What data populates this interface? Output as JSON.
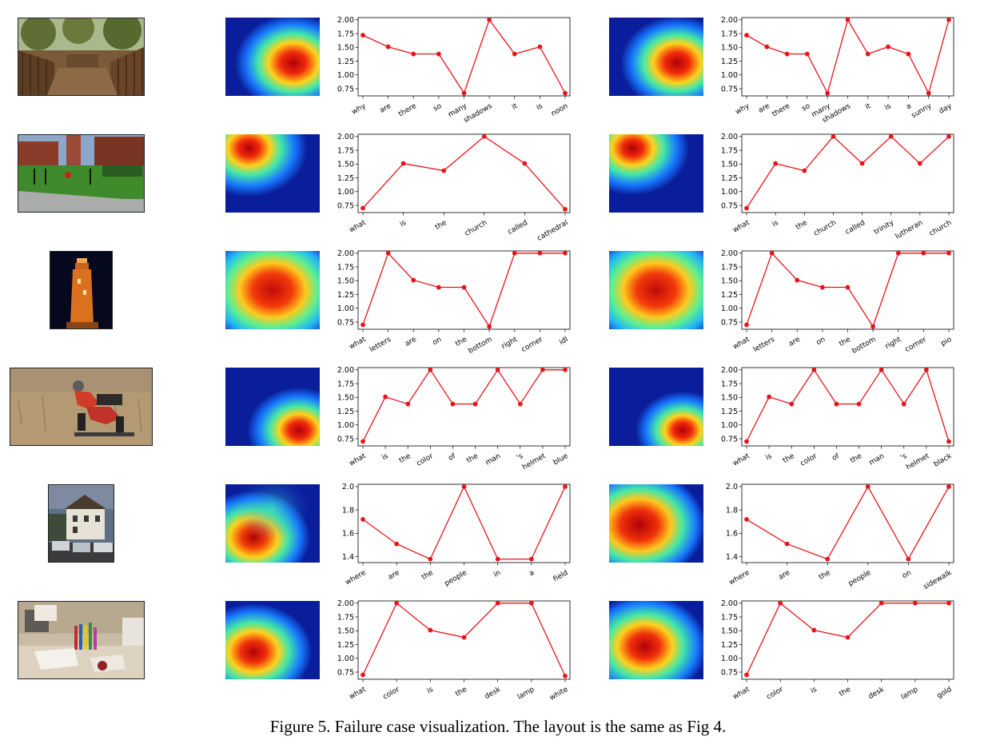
{
  "caption": "Figure 5. Failure case visualization. The layout is the same as Fig 4.",
  "chart_data": [
    {
      "type": "line",
      "title": "",
      "xlabel": "",
      "ylabel": "",
      "ylim": [
        0.62,
        2.04
      ],
      "yticks": [
        "0.75",
        "1.00",
        "1.25",
        "1.50",
        "1.75",
        "2.00"
      ],
      "yticks_v": [
        0.75,
        1.0,
        1.25,
        1.5,
        1.75,
        2.0
      ],
      "categories": [
        "why",
        "are",
        "there",
        "so",
        "many",
        "shadows",
        "it",
        "is",
        "noon"
      ],
      "values": [
        1.72,
        1.51,
        1.38,
        1.38,
        0.67,
        2.0,
        1.38,
        1.51,
        0.67
      ]
    },
    {
      "type": "line",
      "title": "",
      "xlabel": "",
      "ylabel": "",
      "ylim": [
        0.62,
        2.04
      ],
      "yticks": [
        "0.75",
        "1.00",
        "1.25",
        "1.50",
        "1.75",
        "2.00"
      ],
      "yticks_v": [
        0.75,
        1.0,
        1.25,
        1.5,
        1.75,
        2.0
      ],
      "categories": [
        "why",
        "are",
        "there",
        "so",
        "many",
        "shadows",
        "it",
        "is",
        "a",
        "sunny",
        "day"
      ],
      "values": [
        1.72,
        1.51,
        1.38,
        1.38,
        0.67,
        2.0,
        1.38,
        1.51,
        1.38,
        0.67,
        2.0
      ]
    },
    {
      "type": "line",
      "title": "",
      "xlabel": "",
      "ylabel": "",
      "ylim": [
        0.62,
        2.04
      ],
      "yticks": [
        "0.75",
        "1.00",
        "1.25",
        "1.50",
        "1.75",
        "2.00"
      ],
      "yticks_v": [
        0.75,
        1.0,
        1.25,
        1.5,
        1.75,
        2.0
      ],
      "categories": [
        "what",
        "is",
        "the",
        "church",
        "called",
        "cathedral"
      ],
      "values": [
        0.7,
        1.51,
        1.38,
        2.0,
        1.51,
        0.68
      ]
    },
    {
      "type": "line",
      "title": "",
      "xlabel": "",
      "ylabel": "",
      "ylim": [
        0.62,
        2.04
      ],
      "yticks": [
        "0.75",
        "1.00",
        "1.25",
        "1.50",
        "1.75",
        "2.00"
      ],
      "yticks_v": [
        0.75,
        1.0,
        1.25,
        1.5,
        1.75,
        2.0
      ],
      "categories": [
        "what",
        "is",
        "the",
        "church",
        "called",
        "trinity",
        "lutheran",
        "church"
      ],
      "values": [
        0.7,
        1.51,
        1.38,
        2.0,
        1.51,
        2.0,
        1.51,
        2.0
      ]
    },
    {
      "type": "line",
      "title": "",
      "xlabel": "",
      "ylabel": "",
      "ylim": [
        0.62,
        2.04
      ],
      "yticks": [
        "0.75",
        "1.00",
        "1.25",
        "1.50",
        "1.75",
        "2.00"
      ],
      "yticks_v": [
        0.75,
        1.0,
        1.25,
        1.5,
        1.75,
        2.0
      ],
      "categories": [
        "what",
        "letters",
        "are",
        "on",
        "the",
        "bottom",
        "right",
        "corner",
        "idl"
      ],
      "values": [
        0.7,
        2.0,
        1.51,
        1.38,
        1.38,
        0.67,
        2.0,
        2.0,
        2.0
      ]
    },
    {
      "type": "line",
      "title": "",
      "xlabel": "",
      "ylabel": "",
      "ylim": [
        0.62,
        2.04
      ],
      "yticks": [
        "0.75",
        "1.00",
        "1.25",
        "1.50",
        "1.75",
        "2.00"
      ],
      "yticks_v": [
        0.75,
        1.0,
        1.25,
        1.5,
        1.75,
        2.0
      ],
      "categories": [
        "what",
        "letters",
        "are",
        "on",
        "the",
        "bottom",
        "right",
        "corner",
        "pio"
      ],
      "values": [
        0.7,
        2.0,
        1.51,
        1.38,
        1.38,
        0.67,
        2.0,
        2.0,
        2.0
      ]
    },
    {
      "type": "line",
      "title": "",
      "xlabel": "",
      "ylabel": "",
      "ylim": [
        0.62,
        2.04
      ],
      "yticks": [
        "0.75",
        "1.00",
        "1.25",
        "1.50",
        "1.75",
        "2.00"
      ],
      "yticks_v": [
        0.75,
        1.0,
        1.25,
        1.5,
        1.75,
        2.0
      ],
      "categories": [
        "what",
        "is",
        "the",
        "color",
        "of",
        "the",
        "man",
        "'s",
        "helmet",
        "blue"
      ],
      "values": [
        0.7,
        1.51,
        1.38,
        2.0,
        1.38,
        1.38,
        2.0,
        1.38,
        2.0,
        2.0
      ]
    },
    {
      "type": "line",
      "title": "",
      "xlabel": "",
      "ylabel": "",
      "ylim": [
        0.62,
        2.04
      ],
      "yticks": [
        "0.75",
        "1.00",
        "1.25",
        "1.50",
        "1.75",
        "2.00"
      ],
      "yticks_v": [
        0.75,
        1.0,
        1.25,
        1.5,
        1.75,
        2.0
      ],
      "categories": [
        "what",
        "is",
        "the",
        "color",
        "of",
        "the",
        "man",
        "'s",
        "helmet",
        "black"
      ],
      "values": [
        0.7,
        1.51,
        1.38,
        2.0,
        1.38,
        1.38,
        2.0,
        1.38,
        2.0,
        0.7
      ]
    },
    {
      "type": "line",
      "title": "",
      "xlabel": "",
      "ylabel": "",
      "ylim": [
        1.35,
        2.02
      ],
      "yticks": [
        "1.4",
        "1.6",
        "1.8",
        "2.0"
      ],
      "yticks_v": [
        1.4,
        1.6,
        1.8,
        2.0
      ],
      "categories": [
        "where",
        "are",
        "the",
        "people",
        "in",
        "a",
        "field"
      ],
      "values": [
        1.72,
        1.51,
        1.38,
        2.0,
        1.38,
        1.38,
        2.0
      ]
    },
    {
      "type": "line",
      "title": "",
      "xlabel": "",
      "ylabel": "",
      "ylim": [
        1.35,
        2.02
      ],
      "yticks": [
        "1.4",
        "1.6",
        "1.8",
        "2.0"
      ],
      "yticks_v": [
        1.4,
        1.6,
        1.8,
        2.0
      ],
      "categories": [
        "where",
        "are",
        "the",
        "people",
        "on",
        "sidewalk"
      ],
      "values": [
        1.72,
        1.51,
        1.38,
        2.0,
        1.38,
        2.0
      ]
    },
    {
      "type": "line",
      "title": "",
      "xlabel": "",
      "ylabel": "",
      "ylim": [
        0.62,
        2.04
      ],
      "yticks": [
        "0.75",
        "1.00",
        "1.25",
        "1.50",
        "1.75",
        "2.00"
      ],
      "yticks_v": [
        0.75,
        1.0,
        1.25,
        1.5,
        1.75,
        2.0
      ],
      "categories": [
        "what",
        "color",
        "is",
        "the",
        "desk",
        "lamp",
        "white"
      ],
      "values": [
        0.7,
        2.0,
        1.51,
        1.38,
        2.0,
        2.0,
        0.68
      ]
    },
    {
      "type": "line",
      "title": "",
      "xlabel": "",
      "ylabel": "",
      "ylim": [
        0.62,
        2.04
      ],
      "yticks": [
        "0.75",
        "1.00",
        "1.25",
        "1.50",
        "1.75",
        "2.00"
      ],
      "yticks_v": [
        0.75,
        1.0,
        1.25,
        1.5,
        1.75,
        2.0
      ],
      "categories": [
        "what",
        "color",
        "is",
        "the",
        "desk",
        "lamp",
        "gold"
      ],
      "values": [
        0.7,
        2.0,
        1.51,
        1.38,
        2.0,
        2.0,
        2.0
      ]
    }
  ]
}
